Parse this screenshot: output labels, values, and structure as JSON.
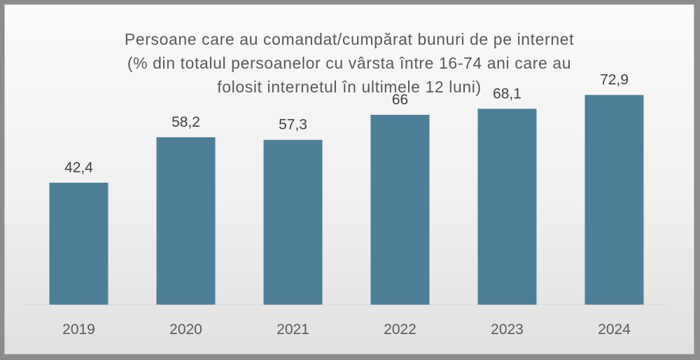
{
  "chart_data": {
    "type": "bar",
    "title_lines": [
      "Persoane care au comandat/cumpărat bunuri de pe internet",
      "(% din totalul persoanelor cu vârsta între 16-74 ani care au",
      "folosit internetul în ultimele 12 luni)"
    ],
    "categories": [
      "2019",
      "2020",
      "2021",
      "2022",
      "2023",
      "2024"
    ],
    "values": [
      42.4,
      58.2,
      57.3,
      66,
      68.1,
      72.9
    ],
    "data_labels": [
      "42,4",
      "58,2",
      "57,3",
      "66",
      "68,1",
      "72,9"
    ],
    "xlabel": "",
    "ylabel": "",
    "ylim": [
      0,
      80
    ],
    "grid": false,
    "legend": "none",
    "bar_color": "#4e7f99"
  }
}
